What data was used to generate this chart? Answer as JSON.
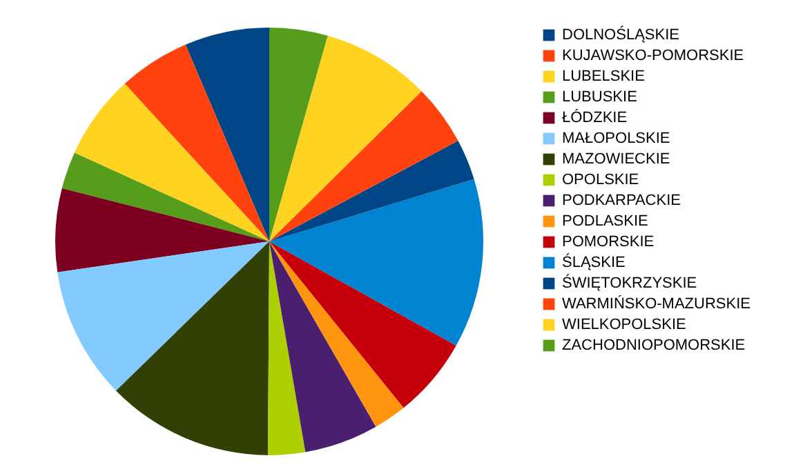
{
  "chart_data": {
    "type": "pie",
    "categories": [
      "DOLNOŚLĄSKIE",
      "KUJAWSKO-POMORSKIE",
      "LUBELSKIE",
      "LUBUSKIE",
      "ŁÓDZKIE",
      "MAŁOPOLSKIE",
      "MAZOWIECKIE",
      "OPOLSKIE",
      "PODKARPACKIE",
      "PODLASKIE",
      "POMORSKIE",
      "ŚLĄSKIE",
      "ŚWIĘTOKRZYSKIE",
      "WARMIŃSKO-MAZURSKIE",
      "WIELKOPOLSKIE",
      "ZACHODNIOPOMORSKIE"
    ],
    "values": [
      6.4,
      5.4,
      6.4,
      2.8,
      6.3,
      10,
      12.6,
      2.8,
      5.6,
      2.5,
      6.1,
      12.8,
      3.1,
      4.6,
      8.2,
      4.4
    ],
    "colors": [
      "#004586",
      "#ff420e",
      "#ffd320",
      "#579d1c",
      "#7e0021",
      "#83caff",
      "#314004",
      "#aecf00",
      "#4b1f6f",
      "#ff950e",
      "#c5000b",
      "#0084d1",
      "#004586",
      "#ff420e",
      "#ffd320",
      "#579d1c"
    ],
    "legend": "right"
  }
}
